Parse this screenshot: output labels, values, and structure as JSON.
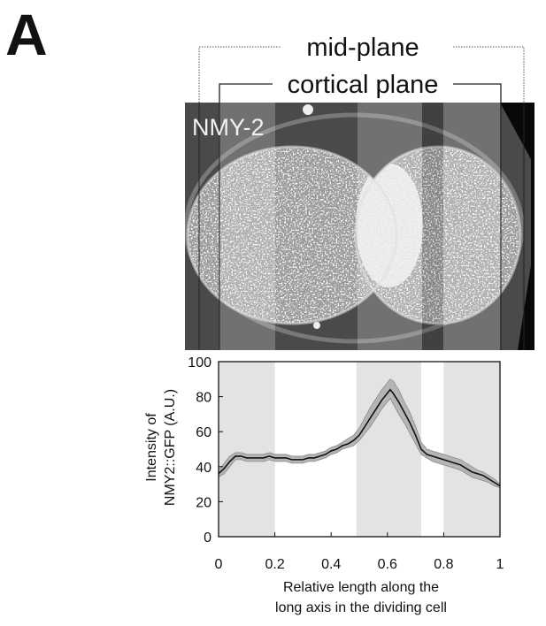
{
  "panel_label": "A",
  "brackets": {
    "outer_label": "mid-plane",
    "inner_label": "cortical plane"
  },
  "micrograph": {
    "label": "NMY-2"
  },
  "chart_data": {
    "type": "line",
    "ylabel_line1": "Intensity of",
    "ylabel_line2": "NMY2::GFP (A.U.)",
    "xlabel_line1": "Relative length along the",
    "xlabel_line2": "long axis in the dividing cell",
    "xlim": [
      0,
      1
    ],
    "ylim": [
      0,
      100
    ],
    "x_ticks": [
      0,
      0.2,
      0.4,
      0.6,
      0.8,
      1
    ],
    "x_tick_labels": [
      "0",
      "0.2",
      "0.4",
      "0.6",
      "0.8",
      "1"
    ],
    "y_ticks": [
      0,
      20,
      40,
      60,
      80,
      100
    ],
    "y_tick_labels": [
      "0",
      "20",
      "40",
      "60",
      "80",
      "100"
    ],
    "shaded_regions": [
      [
        0,
        0.2
      ],
      [
        0.49,
        0.72
      ],
      [
        0.8,
        1.0
      ]
    ],
    "series": [
      {
        "x": [
          0,
          0.02,
          0.04,
          0.06,
          0.08,
          0.1,
          0.12,
          0.14,
          0.16,
          0.18,
          0.2,
          0.22,
          0.24,
          0.26,
          0.28,
          0.3,
          0.32,
          0.34,
          0.36,
          0.38,
          0.4,
          0.42,
          0.44,
          0.46,
          0.48,
          0.5,
          0.52,
          0.54,
          0.56,
          0.58,
          0.6,
          0.61,
          0.62,
          0.64,
          0.66,
          0.68,
          0.7,
          0.72,
          0.74,
          0.76,
          0.78,
          0.8,
          0.82,
          0.84,
          0.86,
          0.88,
          0.9,
          0.92,
          0.94,
          0.96,
          0.98,
          1.0
        ],
        "mean": [
          36,
          39,
          43,
          46,
          46,
          45,
          45,
          45,
          45,
          46,
          45,
          45,
          45,
          44,
          44,
          44,
          45,
          45,
          46,
          47,
          49,
          50,
          52,
          53,
          55,
          58,
          63,
          68,
          73,
          78,
          82,
          84,
          82,
          77,
          71,
          65,
          58,
          50,
          47,
          46,
          45,
          44,
          43,
          42,
          41,
          39,
          37,
          36,
          35,
          33,
          31,
          29
        ],
        "upper": [
          38,
          42,
          46,
          48,
          48,
          47,
          47,
          47,
          47,
          48,
          47,
          47,
          47,
          46,
          46,
          46,
          47,
          47,
          48,
          49,
          51,
          52,
          54,
          56,
          58,
          62,
          68,
          74,
          79,
          84,
          88,
          90,
          89,
          84,
          77,
          71,
          63,
          54,
          50,
          49,
          48,
          47,
          46,
          45,
          44,
          42,
          40,
          38,
          37,
          35,
          33,
          30
        ],
        "lower": [
          34,
          36,
          40,
          44,
          44,
          43,
          43,
          43,
          43,
          44,
          43,
          43,
          43,
          42,
          42,
          42,
          43,
          43,
          44,
          45,
          47,
          48,
          50,
          51,
          52,
          55,
          59,
          63,
          68,
          73,
          77,
          79,
          76,
          70,
          65,
          59,
          53,
          47,
          45,
          43,
          42,
          41,
          40,
          39,
          38,
          36,
          34,
          33,
          32,
          31,
          29,
          28
        ]
      }
    ]
  }
}
